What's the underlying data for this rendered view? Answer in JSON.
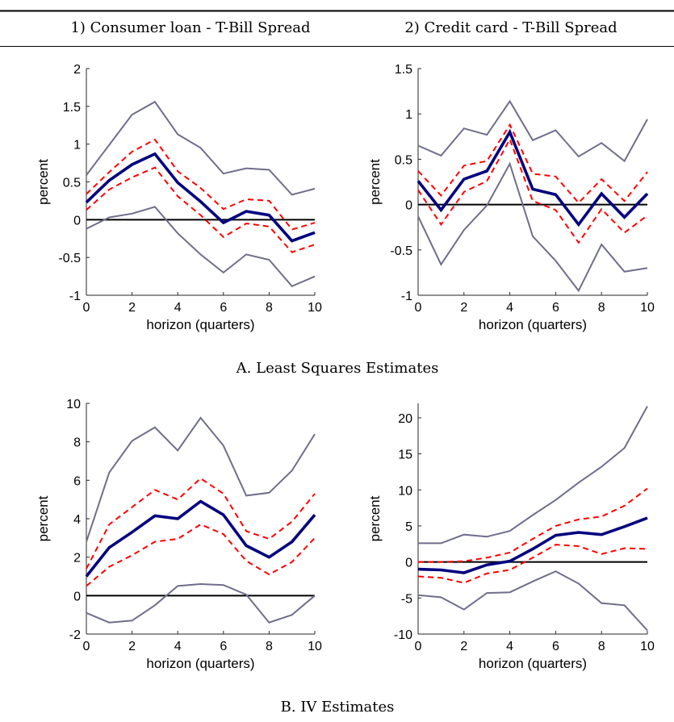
{
  "column_headers": [
    "1) Consumer loan - T-Bill Spread",
    "2) Credit card - T-Bill Spread"
  ],
  "section_captions": [
    "A. Least Squares Estimates",
    "B. IV Estimates"
  ],
  "colors": {
    "point": "#00007f",
    "band68": "#ff0000",
    "band95": "#6e6e8c",
    "zero": "#000000"
  },
  "chart_data": [
    {
      "type": "line",
      "panel": "A1",
      "xlabel": "horizon (quarters)",
      "ylabel": "percent",
      "xlim": [
        0,
        10
      ],
      "ylim": [
        -1,
        2
      ],
      "xticks": [
        0,
        2,
        4,
        6,
        8,
        10
      ],
      "yticks": [
        -1,
        -0.5,
        0,
        0.5,
        1,
        1.5,
        2
      ],
      "x": [
        0,
        1,
        2,
        3,
        4,
        5,
        6,
        7,
        8,
        9,
        10
      ],
      "series": [
        {
          "role": "point",
          "values": [
            0.23,
            0.52,
            0.73,
            0.87,
            0.49,
            0.24,
            -0.04,
            0.11,
            0.06,
            -0.28,
            -0.17
          ]
        },
        {
          "role": "band68-upper",
          "values": [
            0.34,
            0.63,
            0.9,
            1.06,
            0.64,
            0.42,
            0.14,
            0.27,
            0.25,
            -0.13,
            -0.04
          ]
        },
        {
          "role": "band68-lower",
          "values": [
            0.13,
            0.4,
            0.56,
            0.69,
            0.31,
            0.06,
            -0.23,
            -0.05,
            -0.09,
            -0.43,
            -0.33
          ]
        },
        {
          "role": "band95-upper",
          "values": [
            0.59,
            0.99,
            1.39,
            1.56,
            1.13,
            0.95,
            0.61,
            0.68,
            0.66,
            0.33,
            0.41
          ]
        },
        {
          "role": "band95-lower",
          "values": [
            -0.12,
            0.03,
            0.08,
            0.17,
            -0.18,
            -0.46,
            -0.7,
            -0.46,
            -0.53,
            -0.88,
            -0.75
          ]
        }
      ]
    },
    {
      "type": "line",
      "panel": "A2",
      "xlabel": "horizon (quarters)",
      "ylabel": "percent",
      "xlim": [
        0,
        10
      ],
      "ylim": [
        -1,
        1.5
      ],
      "xticks": [
        0,
        2,
        4,
        6,
        8,
        10
      ],
      "yticks": [
        -1,
        -0.5,
        0,
        0.5,
        1,
        1.5
      ],
      "x": [
        0,
        1,
        2,
        3,
        4,
        5,
        6,
        7,
        8,
        9,
        10
      ],
      "series": [
        {
          "role": "point",
          "values": [
            0.26,
            -0.06,
            0.28,
            0.37,
            0.8,
            0.17,
            0.11,
            -0.22,
            0.12,
            -0.14,
            0.12
          ]
        },
        {
          "role": "band68-upper",
          "values": [
            0.37,
            0.1,
            0.43,
            0.48,
            0.88,
            0.34,
            0.31,
            0.02,
            0.28,
            0.04,
            0.36
          ]
        },
        {
          "role": "band68-lower",
          "values": [
            0.16,
            -0.22,
            0.14,
            0.26,
            0.72,
            0.04,
            -0.06,
            -0.42,
            -0.05,
            -0.31,
            -0.12
          ]
        },
        {
          "role": "band95-upper",
          "values": [
            0.65,
            0.54,
            0.84,
            0.77,
            1.14,
            0.71,
            0.82,
            0.53,
            0.68,
            0.48,
            0.94
          ]
        },
        {
          "role": "band95-lower",
          "values": [
            -0.13,
            -0.66,
            -0.28,
            -0.01,
            0.45,
            -0.35,
            -0.62,
            -0.95,
            -0.44,
            -0.74,
            -0.7
          ]
        }
      ]
    },
    {
      "type": "line",
      "panel": "B1",
      "xlabel": "horizon (quarters)",
      "ylabel": "percent",
      "xlim": [
        0,
        10
      ],
      "ylim": [
        -2,
        10
      ],
      "xticks": [
        0,
        2,
        4,
        6,
        8,
        10
      ],
      "yticks": [
        -2,
        0,
        2,
        4,
        6,
        8,
        10
      ],
      "x": [
        0,
        1,
        2,
        3,
        4,
        5,
        6,
        7,
        8,
        9,
        10
      ],
      "series": [
        {
          "role": "point",
          "values": [
            1.0,
            2.5,
            3.3,
            4.15,
            4.0,
            4.9,
            4.2,
            2.6,
            2.0,
            2.8,
            4.2
          ]
        },
        {
          "role": "band68-upper",
          "values": [
            1.4,
            3.7,
            4.6,
            5.5,
            5.0,
            6.1,
            5.3,
            3.35,
            2.95,
            3.85,
            5.3
          ]
        },
        {
          "role": "band68-lower",
          "values": [
            0.5,
            1.5,
            2.1,
            2.8,
            2.95,
            3.7,
            3.2,
            1.8,
            1.1,
            1.75,
            3.0
          ]
        },
        {
          "role": "band95-upper",
          "values": [
            2.8,
            6.4,
            8.05,
            8.75,
            7.55,
            9.25,
            7.8,
            5.2,
            5.35,
            6.5,
            8.4
          ]
        },
        {
          "role": "band95-lower",
          "values": [
            -0.9,
            -1.4,
            -1.3,
            -0.5,
            0.5,
            0.6,
            0.55,
            0.05,
            -1.4,
            -1.0,
            0.0
          ]
        }
      ]
    },
    {
      "type": "line",
      "panel": "B2",
      "xlabel": "horizon (quarters)",
      "ylabel": "percent",
      "xlim": [
        0,
        10
      ],
      "ylim": [
        -10,
        22
      ],
      "xticks": [
        0,
        2,
        4,
        6,
        8,
        10
      ],
      "yticks": [
        -10,
        -5,
        0,
        5,
        10,
        15,
        20
      ],
      "x": [
        0,
        1,
        2,
        3,
        4,
        5,
        6,
        7,
        8,
        9,
        10
      ],
      "series": [
        {
          "role": "point",
          "values": [
            -1.0,
            -1.1,
            -1.5,
            -0.4,
            0.1,
            1.8,
            3.7,
            4.1,
            3.8,
            4.9,
            6.1
          ]
        },
        {
          "role": "band68-upper",
          "values": [
            0.0,
            0.0,
            0.1,
            0.6,
            1.3,
            3.2,
            5.0,
            5.9,
            6.3,
            7.8,
            10.2
          ]
        },
        {
          "role": "band68-lower",
          "values": [
            -2.0,
            -2.2,
            -2.9,
            -1.6,
            -1.1,
            0.6,
            2.4,
            2.2,
            1.1,
            1.9,
            1.8
          ]
        },
        {
          "role": "band95-upper",
          "values": [
            2.6,
            2.6,
            3.8,
            3.5,
            4.3,
            6.5,
            8.6,
            11.0,
            13.2,
            15.8,
            21.6
          ]
        },
        {
          "role": "band95-lower",
          "values": [
            -4.6,
            -4.9,
            -6.6,
            -4.3,
            -4.2,
            -2.7,
            -1.3,
            -3.0,
            -5.7,
            -6.0,
            -9.5
          ]
        }
      ]
    }
  ]
}
